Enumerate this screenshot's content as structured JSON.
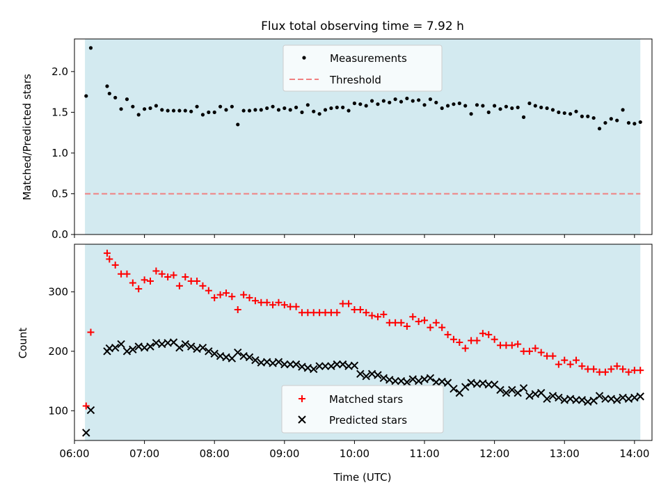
{
  "figure": {
    "title": "Flux total observing time = 7.92 h"
  },
  "colors": {
    "shade": "#d3eaf0",
    "threshold": "#f08080",
    "measurement": "#000000",
    "matched": "#ff0000",
    "predicted": "#000000"
  },
  "chart_data": [
    {
      "type": "scatter",
      "ylabel": "Matched/Predicted stars",
      "xlim": [
        "06:00",
        "14:15"
      ],
      "ylim": [
        0,
        2.4
      ],
      "yticks": [
        "0.0",
        "0.5",
        "1.0",
        "1.5",
        "2.0"
      ],
      "shaded_span": [
        "06:09",
        "14:05"
      ],
      "legend": {
        "placement": "top-center",
        "entries": [
          "Measurements",
          "Threshold"
        ]
      },
      "threshold": {
        "name": "Threshold",
        "y": 0.5
      },
      "series": [
        {
          "name": "Measurements",
          "x": [
            "06:10",
            "06:14",
            "06:28",
            "06:30",
            "06:35",
            "06:40",
            "06:45",
            "06:50",
            "06:55",
            "07:00",
            "07:05",
            "07:10",
            "07:15",
            "07:20",
            "07:25",
            "07:30",
            "07:35",
            "07:40",
            "07:45",
            "07:50",
            "07:55",
            "08:00",
            "08:05",
            "08:10",
            "08:15",
            "08:20",
            "08:25",
            "08:30",
            "08:35",
            "08:40",
            "08:45",
            "08:50",
            "08:55",
            "09:00",
            "09:05",
            "09:10",
            "09:15",
            "09:20",
            "09:25",
            "09:30",
            "09:35",
            "09:40",
            "09:45",
            "09:50",
            "09:55",
            "10:00",
            "10:05",
            "10:10",
            "10:15",
            "10:20",
            "10:25",
            "10:30",
            "10:35",
            "10:40",
            "10:45",
            "10:50",
            "10:55",
            "11:00",
            "11:05",
            "11:10",
            "11:15",
            "11:20",
            "11:25",
            "11:30",
            "11:35",
            "11:40",
            "11:45",
            "11:50",
            "11:55",
            "12:00",
            "12:05",
            "12:10",
            "12:15",
            "12:20",
            "12:25",
            "12:30",
            "12:35",
            "12:40",
            "12:45",
            "12:50",
            "12:55",
            "13:00",
            "13:05",
            "13:10",
            "13:15",
            "13:20",
            "13:25",
            "13:30",
            "13:35",
            "13:40",
            "13:45",
            "13:50",
            "13:55",
            "14:00",
            "14:05"
          ],
          "y": [
            1.7,
            2.29,
            1.82,
            1.73,
            1.68,
            1.54,
            1.66,
            1.57,
            1.47,
            1.54,
            1.55,
            1.58,
            1.53,
            1.52,
            1.52,
            1.52,
            1.52,
            1.51,
            1.57,
            1.47,
            1.5,
            1.5,
            1.57,
            1.53,
            1.57,
            1.35,
            1.52,
            1.52,
            1.53,
            1.53,
            1.55,
            1.57,
            1.53,
            1.55,
            1.53,
            1.56,
            1.5,
            1.59,
            1.51,
            1.48,
            1.53,
            1.55,
            1.56,
            1.56,
            1.52,
            1.61,
            1.6,
            1.58,
            1.64,
            1.6,
            1.64,
            1.62,
            1.66,
            1.63,
            1.67,
            1.64,
            1.65,
            1.59,
            1.66,
            1.62,
            1.55,
            1.58,
            1.6,
            1.61,
            1.58,
            1.48,
            1.59,
            1.58,
            1.5,
            1.58,
            1.54,
            1.57,
            1.55,
            1.56,
            1.44,
            1.61,
            1.58,
            1.56,
            1.55,
            1.53,
            1.5,
            1.49,
            1.48,
            1.51,
            1.45,
            1.45,
            1.43,
            1.3,
            1.37,
            1.42,
            1.4,
            1.53,
            1.37,
            1.36,
            1.38
          ]
        }
      ]
    },
    {
      "type": "scatter",
      "xlabel": "Time (UTC)",
      "ylabel": "Count",
      "xlim": [
        "06:00",
        "14:15"
      ],
      "ylim": [
        50,
        380
      ],
      "xticks": [
        "06:00",
        "07:00",
        "08:00",
        "09:00",
        "10:00",
        "11:00",
        "12:00",
        "13:00",
        "14:00"
      ],
      "yticks": [
        "100",
        "200",
        "300"
      ],
      "shaded_span": [
        "06:09",
        "14:05"
      ],
      "legend": {
        "placement": "bottom-center",
        "entries": [
          "Matched stars",
          "Predicted stars"
        ]
      },
      "series": [
        {
          "name": "Matched stars",
          "x": [
            "06:10",
            "06:14",
            "06:28",
            "06:30",
            "06:35",
            "06:40",
            "06:45",
            "06:50",
            "06:55",
            "07:00",
            "07:05",
            "07:10",
            "07:15",
            "07:20",
            "07:25",
            "07:30",
            "07:35",
            "07:40",
            "07:45",
            "07:50",
            "07:55",
            "08:00",
            "08:05",
            "08:10",
            "08:15",
            "08:20",
            "08:25",
            "08:30",
            "08:35",
            "08:40",
            "08:45",
            "08:50",
            "08:55",
            "09:00",
            "09:05",
            "09:10",
            "09:15",
            "09:20",
            "09:25",
            "09:30",
            "09:35",
            "09:40",
            "09:45",
            "09:50",
            "09:55",
            "10:00",
            "10:05",
            "10:10",
            "10:15",
            "10:20",
            "10:25",
            "10:30",
            "10:35",
            "10:40",
            "10:45",
            "10:50",
            "10:55",
            "11:00",
            "11:05",
            "11:10",
            "11:15",
            "11:20",
            "11:25",
            "11:30",
            "11:35",
            "11:40",
            "11:45",
            "11:50",
            "11:55",
            "12:00",
            "12:05",
            "12:10",
            "12:15",
            "12:20",
            "12:25",
            "12:30",
            "12:35",
            "12:40",
            "12:45",
            "12:50",
            "12:55",
            "13:00",
            "13:05",
            "13:10",
            "13:15",
            "13:20",
            "13:25",
            "13:30",
            "13:35",
            "13:40",
            "13:45",
            "13:50",
            "13:55",
            "14:00",
            "14:05"
          ],
          "y": [
            108,
            232,
            365,
            355,
            345,
            330,
            330,
            315,
            305,
            320,
            318,
            335,
            330,
            325,
            328,
            310,
            325,
            318,
            318,
            310,
            302,
            290,
            295,
            298,
            292,
            270,
            295,
            290,
            285,
            282,
            282,
            278,
            282,
            278,
            275,
            275,
            265,
            265,
            265,
            265,
            265,
            265,
            265,
            280,
            280,
            270,
            270,
            265,
            260,
            258,
            262,
            248,
            248,
            248,
            242,
            258,
            250,
            252,
            240,
            248,
            240,
            228,
            220,
            215,
            205,
            218,
            218,
            230,
            228,
            220,
            210,
            210,
            210,
            212,
            200,
            200,
            205,
            198,
            192,
            192,
            178,
            185,
            178,
            185,
            175,
            170,
            170,
            165,
            165,
            170,
            175,
            170,
            165,
            168,
            168
          ]
        },
        {
          "name": "Predicted stars",
          "x": [
            "06:10",
            "06:14",
            "06:28",
            "06:30",
            "06:35",
            "06:40",
            "06:45",
            "06:50",
            "06:55",
            "07:00",
            "07:05",
            "07:10",
            "07:15",
            "07:20",
            "07:25",
            "07:30",
            "07:35",
            "07:40",
            "07:45",
            "07:50",
            "07:55",
            "08:00",
            "08:05",
            "08:10",
            "08:15",
            "08:20",
            "08:25",
            "08:30",
            "08:35",
            "08:40",
            "08:45",
            "08:50",
            "08:55",
            "09:00",
            "09:05",
            "09:10",
            "09:15",
            "09:20",
            "09:25",
            "09:30",
            "09:35",
            "09:40",
            "09:45",
            "09:50",
            "09:55",
            "10:00",
            "10:05",
            "10:10",
            "10:15",
            "10:20",
            "10:25",
            "10:30",
            "10:35",
            "10:40",
            "10:45",
            "10:50",
            "10:55",
            "11:00",
            "11:05",
            "11:10",
            "11:15",
            "11:20",
            "11:25",
            "11:30",
            "11:35",
            "11:40",
            "11:45",
            "11:50",
            "11:55",
            "12:00",
            "12:05",
            "12:10",
            "12:15",
            "12:20",
            "12:25",
            "12:30",
            "12:35",
            "12:40",
            "12:45",
            "12:50",
            "12:55",
            "13:00",
            "13:05",
            "13:10",
            "13:15",
            "13:20",
            "13:25",
            "13:30",
            "13:35",
            "13:40",
            "13:45",
            "13:50",
            "13:55",
            "14:00",
            "14:05"
          ],
          "y": [
            63,
            101,
            200,
            205,
            206,
            212,
            200,
            203,
            208,
            206,
            208,
            214,
            212,
            214,
            215,
            206,
            212,
            208,
            204,
            206,
            200,
            196,
            192,
            190,
            188,
            198,
            192,
            190,
            185,
            181,
            182,
            180,
            182,
            178,
            178,
            178,
            174,
            172,
            170,
            175,
            175,
            175,
            178,
            178,
            175,
            176,
            162,
            158,
            162,
            160,
            155,
            152,
            150,
            150,
            148,
            153,
            150,
            153,
            155,
            148,
            149,
            147,
            137,
            130,
            140,
            147,
            145,
            146,
            144,
            144,
            135,
            130,
            135,
            130,
            138,
            125,
            128,
            130,
            120,
            125,
            122,
            118,
            120,
            118,
            118,
            115,
            117,
            125,
            120,
            120,
            118,
            122,
            120,
            122,
            124
          ]
        }
      ]
    }
  ]
}
